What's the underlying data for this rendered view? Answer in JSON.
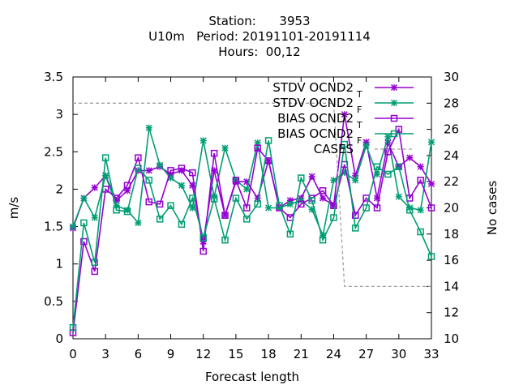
{
  "title_lines": [
    "Station:      3953",
    "U10m   Period: 20191101-20191114",
    "Hours:  00,12"
  ],
  "chart_data": {
    "type": "line",
    "xlabel": "Forecast length",
    "ylabel": "m/s",
    "y2label": "No cases",
    "xlim": [
      0,
      33
    ],
    "ylim": [
      0,
      3.5
    ],
    "y2lim": [
      10,
      30
    ],
    "xticks": [
      0,
      3,
      6,
      9,
      12,
      15,
      18,
      21,
      24,
      27,
      30,
      33
    ],
    "yticks": [
      0,
      0.5,
      1,
      1.5,
      2,
      2.5,
      3,
      3.5
    ],
    "y2ticks": [
      10,
      12,
      14,
      16,
      18,
      20,
      22,
      24,
      26,
      28,
      30
    ],
    "legend_position": "top-right",
    "x": [
      0,
      1,
      2,
      3,
      4,
      5,
      6,
      7,
      8,
      9,
      10,
      11,
      12,
      13,
      14,
      15,
      16,
      17,
      18,
      19,
      20,
      21,
      22,
      23,
      24,
      25,
      26,
      27,
      28,
      29,
      30,
      31,
      32,
      33
    ],
    "series": [
      {
        "name": "STDV OCND2",
        "sub": "T",
        "color": "#9400d3",
        "marker": "x",
        "dash": false,
        "values": [
          1.48,
          1.88,
          2.02,
          2.18,
          1.85,
          1.98,
          2.25,
          2.25,
          2.3,
          2.2,
          2.25,
          2.05,
          1.3,
          2.25,
          1.65,
          2.1,
          2.1,
          1.88,
          2.38,
          1.75,
          1.85,
          1.88,
          2.17,
          1.88,
          1.78,
          3.0,
          2.18,
          2.63,
          1.88,
          2.62,
          2.3,
          2.42,
          2.3,
          2.07
        ]
      },
      {
        "name": "STDV OCND2",
        "sub": "F",
        "color": "#009e73",
        "marker": "x",
        "dash": false,
        "values": [
          1.5,
          1.88,
          1.62,
          2.18,
          1.78,
          1.72,
          1.55,
          2.82,
          2.32,
          2.15,
          2.05,
          1.75,
          2.65,
          1.9,
          2.55,
          2.12,
          2.0,
          2.62,
          1.75,
          1.75,
          1.8,
          1.85,
          1.73,
          1.38,
          2.12,
          2.22,
          2.12,
          2.58,
          2.2,
          2.7,
          1.9,
          1.75,
          1.72,
          2.63
        ]
      },
      {
        "name": "BIAS OCND2",
        "sub": "T",
        "color": "#9400d3",
        "marker": "square",
        "dash": false,
        "values": [
          0.08,
          1.3,
          0.9,
          2.0,
          1.88,
          2.05,
          2.42,
          1.83,
          1.8,
          2.25,
          2.28,
          2.22,
          1.17,
          2.48,
          1.65,
          2.12,
          1.75,
          2.55,
          2.38,
          1.75,
          1.62,
          1.8,
          1.88,
          1.98,
          1.78,
          2.33,
          1.65,
          1.88,
          1.75,
          2.5,
          2.8,
          1.88,
          2.12,
          1.75
        ]
      },
      {
        "name": "BIAS OCND2",
        "sub": "F",
        "color": "#009e73",
        "marker": "square",
        "dash": false,
        "values": [
          0.15,
          1.55,
          1.02,
          2.42,
          1.72,
          1.7,
          2.28,
          2.12,
          1.6,
          1.78,
          1.53,
          1.88,
          1.35,
          1.87,
          1.32,
          1.88,
          1.6,
          1.8,
          2.65,
          1.78,
          1.4,
          2.15,
          1.85,
          1.32,
          1.62,
          2.6,
          1.48,
          1.75,
          2.3,
          2.2,
          2.3,
          1.72,
          1.43,
          1.1
        ]
      },
      {
        "name": "CASES",
        "sub": "",
        "color": "#a0a0a0",
        "marker": "none",
        "dash": true,
        "axis": "y2",
        "values": [
          28,
          28,
          28,
          28,
          28,
          28,
          28,
          28,
          28,
          28,
          28,
          28,
          28,
          28,
          28,
          28,
          28,
          28,
          28,
          28,
          28,
          28,
          28,
          28,
          28,
          14,
          14,
          14,
          14,
          14,
          14,
          14,
          14,
          14
        ]
      }
    ]
  }
}
